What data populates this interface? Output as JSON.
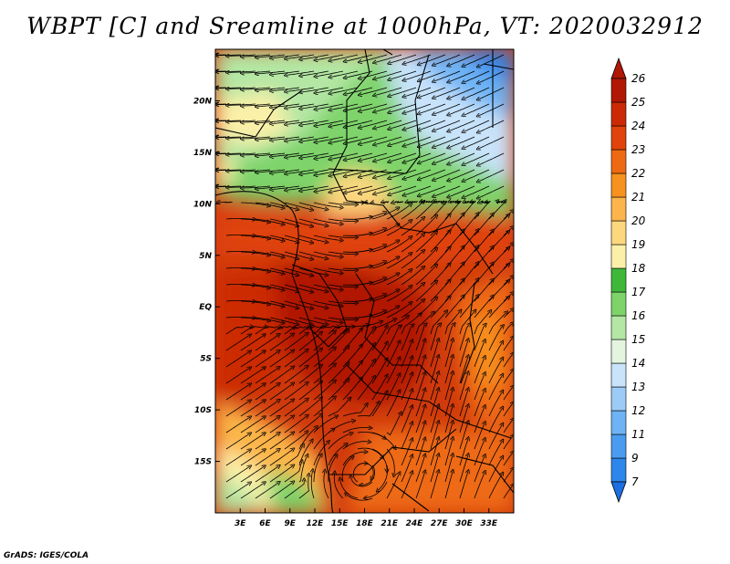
{
  "title": "WBPT [C] and Sreamline at 1000hPa, VT: 2020032912",
  "credit": "GrADS: IGES/COLA",
  "map": {
    "lon_range": [
      0,
      36
    ],
    "lat_range": [
      -20,
      25
    ],
    "lon_ticks": [
      {
        "value": 3,
        "label": "3E"
      },
      {
        "value": 6,
        "label": "6E"
      },
      {
        "value": 9,
        "label": "9E"
      },
      {
        "value": 12,
        "label": "12E"
      },
      {
        "value": 15,
        "label": "15E"
      },
      {
        "value": 18,
        "label": "18E"
      },
      {
        "value": 21,
        "label": "21E"
      },
      {
        "value": 24,
        "label": "24E"
      },
      {
        "value": 27,
        "label": "27E"
      },
      {
        "value": 30,
        "label": "30E"
      },
      {
        "value": 33,
        "label": "33E"
      }
    ],
    "lat_ticks": [
      {
        "value": 20,
        "label": "20N"
      },
      {
        "value": 15,
        "label": "15N"
      },
      {
        "value": 10,
        "label": "10N"
      },
      {
        "value": 5,
        "label": "5N"
      },
      {
        "value": 0,
        "label": "EQ"
      },
      {
        "value": -5,
        "label": "5S"
      },
      {
        "value": -10,
        "label": "10S"
      },
      {
        "value": -15,
        "label": "15S"
      }
    ]
  },
  "colorbar": {
    "labels": [
      "7",
      "9",
      "11",
      "12",
      "13",
      "14",
      "15",
      "16",
      "17",
      "18",
      "19",
      "20",
      "21",
      "22",
      "23",
      "24",
      "25",
      "26"
    ],
    "colors": [
      "#1c6fe0",
      "#2d86ec",
      "#4a9cf0",
      "#6eb3f4",
      "#9ccbf7",
      "#c8e3fa",
      "#e4f5df",
      "#b4e7a4",
      "#7ed36a",
      "#3fb83a",
      "#fbf0a8",
      "#fcd77e",
      "#fbb54a",
      "#f7921f",
      "#ee6a12",
      "#e0430c",
      "#cc2a06",
      "#b01704"
    ],
    "low_color": "#1c6fe0",
    "high_color": "#b01704"
  }
}
